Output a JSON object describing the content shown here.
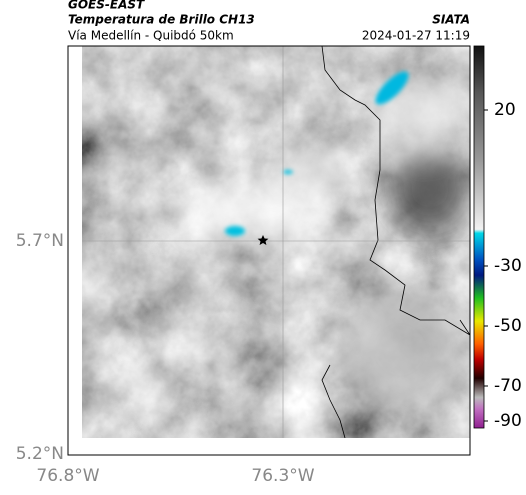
{
  "header": {
    "source": "GOES-EAST",
    "title": "Temperatura de Brillo CH13",
    "subtitle": "Vía Medellín - Quibdó 50km",
    "brand": "SIATA",
    "timestamp": "2024-01-27 11:19"
  },
  "map": {
    "lat_labels": [
      "5.7°N",
      "5.2°N"
    ],
    "lon_labels": [
      "76.8°W",
      "76.3°W"
    ]
  },
  "colorbar": {
    "ticks": [
      20,
      -30,
      -50,
      -70,
      -90
    ]
  }
}
